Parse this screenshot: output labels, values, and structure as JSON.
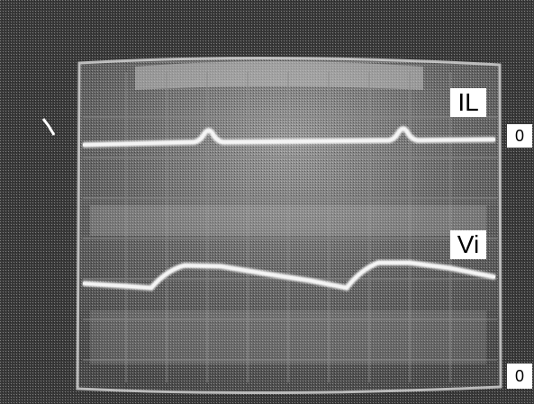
{
  "labels": {
    "trace_top": "IL",
    "trace_bottom": "Vi",
    "zero_top": "0",
    "zero_bottom": "0"
  },
  "colors": {
    "bezel": "#3a3a3a",
    "screen": "#5e5e5e",
    "trace": "#f4f4f4",
    "grid": "#8a8a8a"
  }
}
